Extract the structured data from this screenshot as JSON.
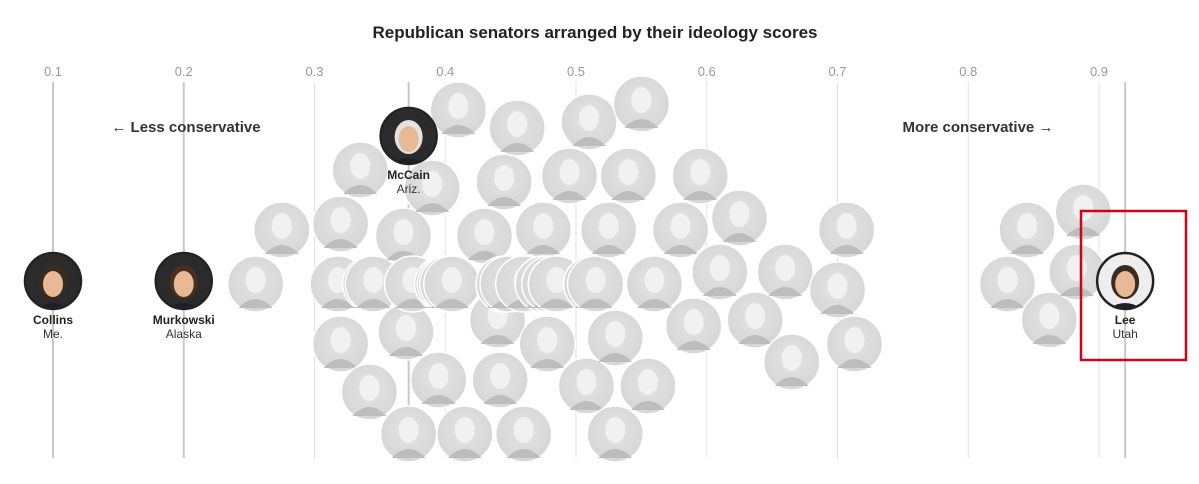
{
  "chart_data": {
    "type": "scatter",
    "title": "Republican senators arranged by their ideology scores",
    "xlim": [
      0.1,
      0.9
    ],
    "x_ticks": [
      0.1,
      0.2,
      0.3,
      0.4,
      0.5,
      0.6,
      0.7,
      0.8,
      0.9
    ],
    "x_tick_labels": [
      "0.1",
      "0.2",
      "0.3",
      "0.4",
      "0.5",
      "0.6",
      "0.7",
      "0.8",
      "0.9"
    ],
    "annotations": {
      "less": "← Less conservative",
      "more": "More conservative →"
    },
    "highlight_color": "#d0021b",
    "labeled_senators": [
      {
        "name": "Collins",
        "state": "Me.",
        "score": 0.1,
        "highlighted": false
      },
      {
        "name": "Murkowski",
        "state": "Alaska",
        "score": 0.2,
        "highlighted": false
      },
      {
        "name": "McCain",
        "state": "Ariz.",
        "score": 0.372,
        "highlighted": false
      },
      {
        "name": "Lee",
        "state": "Utah",
        "score": 0.92,
        "highlighted": true
      }
    ],
    "other_senator_scores": [
      0.255,
      0.275,
      0.32,
      0.318,
      0.343,
      0.32,
      0.335,
      0.345,
      0.342,
      0.39,
      0.37,
      0.375,
      0.368,
      0.372,
      0.4,
      0.398,
      0.395,
      0.402,
      0.405,
      0.43,
      0.415,
      0.41,
      0.44,
      0.448,
      0.455,
      0.46,
      0.46,
      0.442,
      0.445,
      0.445,
      0.475,
      0.475,
      0.48,
      0.485,
      0.478,
      0.485,
      0.485,
      0.495,
      0.508,
      0.51,
      0.53,
      0.512,
      0.515,
      0.54,
      0.525,
      0.53,
      0.55,
      0.555,
      0.56,
      0.56,
      0.58,
      0.59,
      0.595,
      0.625,
      0.61,
      0.637,
      0.665,
      0.66,
      0.7,
      0.707,
      0.713,
      0.83,
      0.845,
      0.862,
      0.883,
      0.888
    ]
  }
}
